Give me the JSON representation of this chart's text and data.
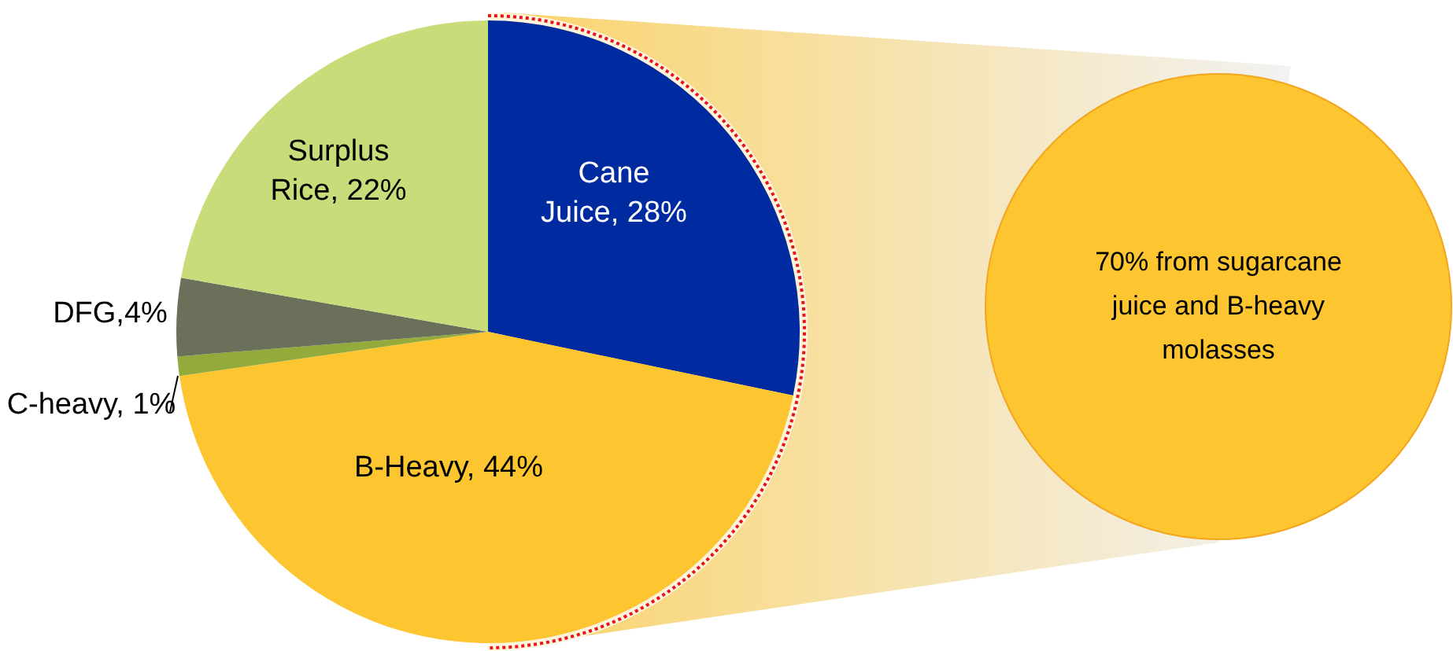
{
  "chart_data": {
    "type": "pie",
    "categories": [
      "Cane Juice",
      "B-Heavy",
      "C-heavy",
      "DFG",
      "Surplus Rice"
    ],
    "values": [
      28,
      44,
      1,
      4,
      22
    ],
    "value_labels": [
      "28%",
      "44%",
      "1%",
      "4%",
      "22%"
    ],
    "colors": [
      "#002aa0",
      "#fdc630",
      "#92ab3a",
      "#6b705a",
      "#c8dd7a"
    ],
    "annotations": [
      "70% from sugarcane juice and B-heavy molasses"
    ]
  }
}
